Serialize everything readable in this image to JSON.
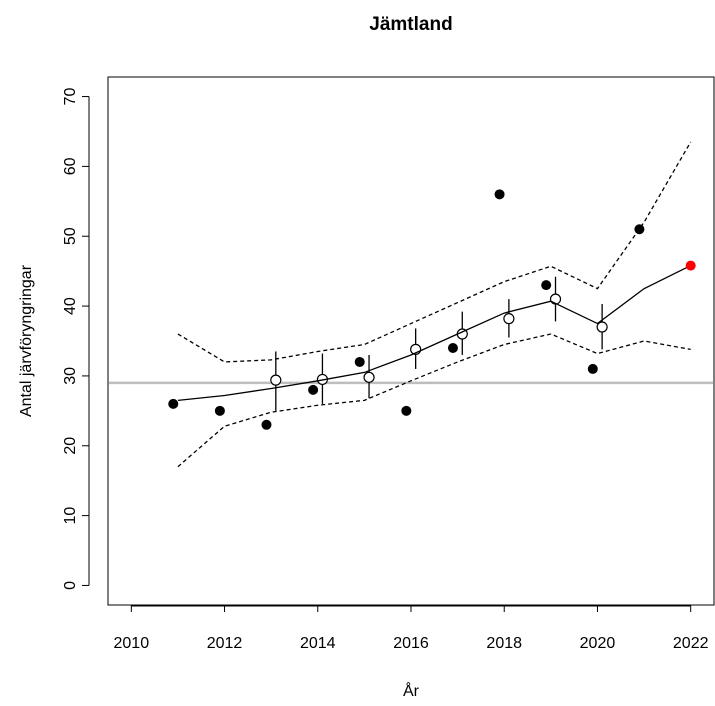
{
  "chart_data": {
    "type": "scatter",
    "title": "Jämtland",
    "xlabel": "År",
    "ylabel": "Antal järvföryngringar",
    "xlim": [
      2009.5,
      2022.5
    ],
    "ylim": [
      -2.8,
      72.8
    ],
    "xticks": [
      2010,
      2012,
      2014,
      2016,
      2018,
      2020,
      2022
    ],
    "yticks": [
      0,
      10,
      20,
      30,
      40,
      50,
      60,
      70
    ],
    "hline": 29,
    "hline_color": "#bebebe",
    "series": [
      {
        "kind": "points",
        "marker": "filled",
        "color": "#000000",
        "x": [
          2010.9,
          2011.9,
          2012.9,
          2013.9,
          2014.9,
          2015.9,
          2016.9,
          2017.9,
          2018.9,
          2019.9,
          2020.9
        ],
        "values": [
          26,
          25,
          23,
          28,
          32,
          25,
          34,
          56,
          43,
          31,
          51
        ]
      },
      {
        "kind": "points",
        "marker": "open",
        "color": "#000000",
        "x": [
          2013.1,
          2014.1,
          2015.1,
          2016.1,
          2017.1,
          2018.1,
          2019.1,
          2020.1
        ],
        "values": [
          29.4,
          29.5,
          29.8,
          33.8,
          36,
          38.2,
          41,
          37
        ],
        "low": [
          25,
          26,
          26.8,
          31,
          33,
          35.5,
          37.8,
          33.8
        ],
        "high": [
          33.5,
          33.2,
          33,
          36.8,
          39.2,
          41,
          44.2,
          40.3
        ]
      },
      {
        "kind": "line",
        "dash": false,
        "color": "#000000",
        "x": [
          2011,
          2012,
          2013,
          2014,
          2015,
          2016,
          2017,
          2018,
          2019,
          2020,
          2021,
          2022
        ],
        "values": [
          26.5,
          27.2,
          28.2,
          29.3,
          30.5,
          33,
          36,
          39,
          40.7,
          37.5,
          42.5,
          45.8
        ]
      },
      {
        "kind": "line",
        "dash": true,
        "color": "#000000",
        "x": [
          2011,
          2012,
          2013,
          2014,
          2015,
          2016,
          2017,
          2018,
          2019,
          2020,
          2021,
          2022
        ],
        "values": [
          36,
          32,
          32.3,
          33.5,
          34.5,
          37.5,
          40.5,
          43.5,
          45.7,
          42.5,
          52,
          63.5
        ]
      },
      {
        "kind": "line",
        "dash": true,
        "color": "#000000",
        "x": [
          2011,
          2012,
          2013,
          2014,
          2015,
          2016,
          2017,
          2018,
          2019,
          2020,
          2021,
          2022
        ],
        "values": [
          17,
          22.8,
          24.8,
          25.8,
          26.5,
          29.3,
          32,
          34.5,
          36,
          33.2,
          35,
          33.8
        ]
      },
      {
        "kind": "points",
        "marker": "filled",
        "color": "#ff0000",
        "x": [
          2022
        ],
        "values": [
          45.8
        ]
      }
    ]
  }
}
